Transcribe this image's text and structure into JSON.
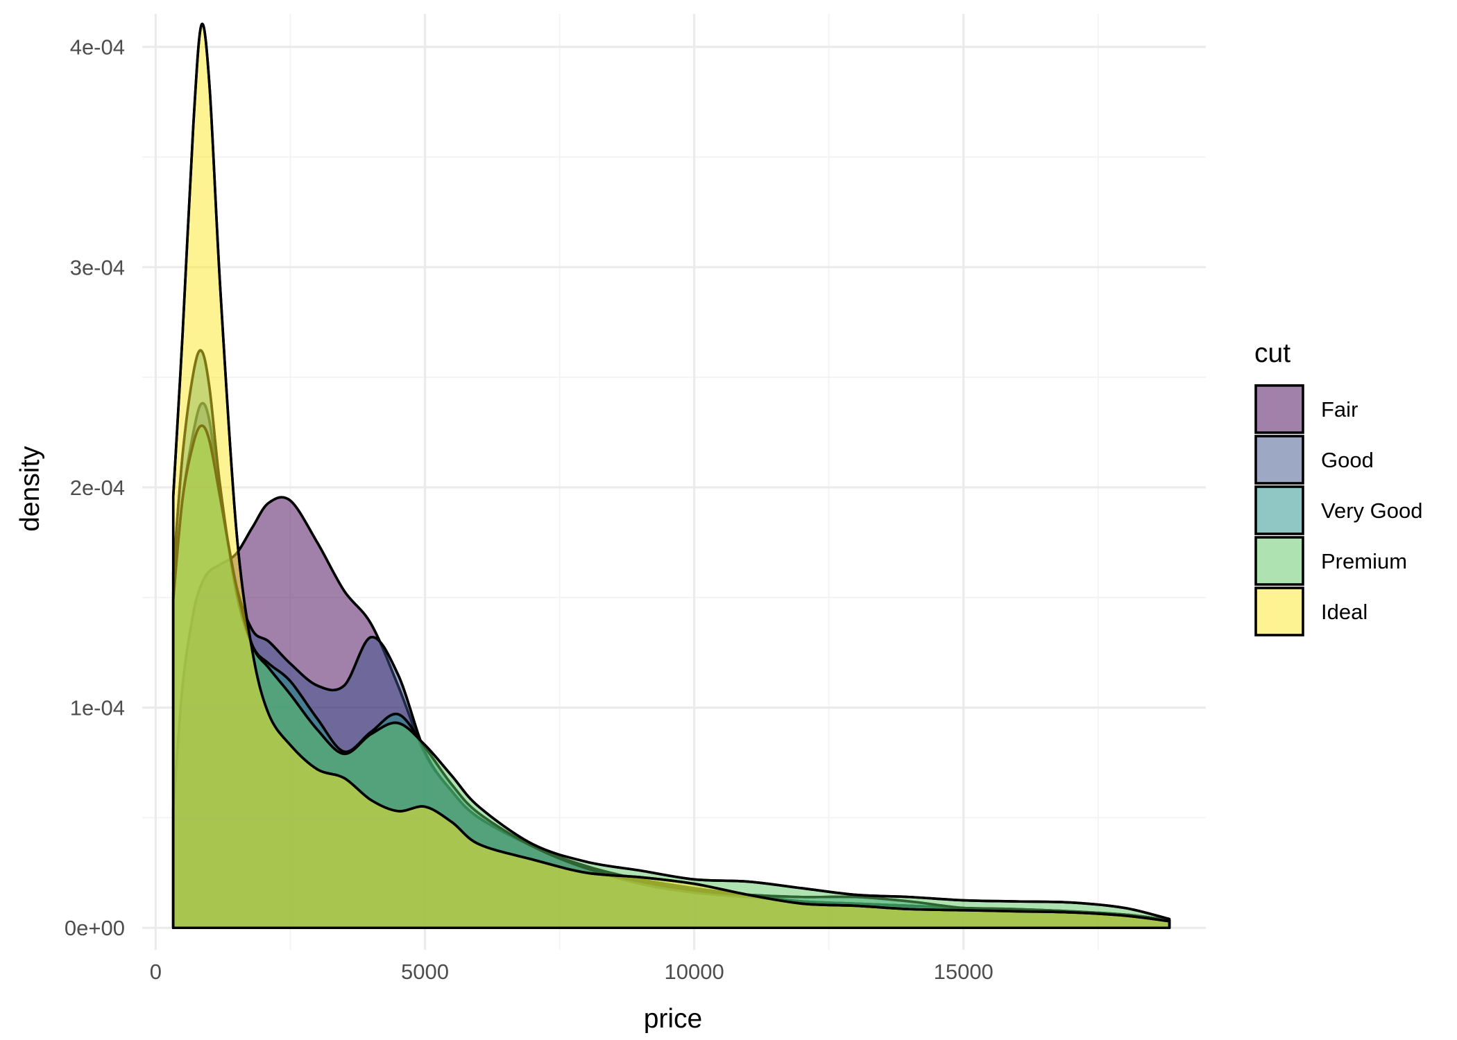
{
  "chart_data": {
    "type": "area",
    "subtype": "density",
    "title": "",
    "xlabel": "price",
    "ylabel": "density",
    "xlim": [
      -250,
      19500
    ],
    "ylim": [
      -1e-05,
      0.000415
    ],
    "x_ticks": [
      0,
      5000,
      10000,
      15000
    ],
    "x_tick_labels": [
      "0",
      "5000",
      "10000",
      "15000"
    ],
    "x_minor": [
      2500,
      7500,
      12500,
      17500
    ],
    "y_ticks": [
      0,
      0.0001,
      0.0002,
      0.0003,
      0.0004
    ],
    "y_tick_labels": [
      "0e+00",
      "1e-04",
      "2e-04",
      "3e-04",
      "4e-04"
    ],
    "y_minor": [
      5e-05,
      0.00015,
      0.00025,
      0.00035
    ],
    "grid": true,
    "fill_alpha": 0.5,
    "legend": {
      "title": "cut",
      "position": "right"
    },
    "x": [
      326,
      500,
      700,
      850,
      1000,
      1200,
      1500,
      1800,
      2100,
      2500,
      3000,
      3500,
      4000,
      4500,
      5000,
      5500,
      6000,
      7000,
      8000,
      9000,
      10000,
      11000,
      12000,
      13000,
      14000,
      15000,
      16000,
      17000,
      18000,
      18823
    ],
    "series": [
      {
        "name": "Fair",
        "color": "#440154",
        "values": [
          5.4e-05,
          0.00011,
          0.000143,
          0.000156,
          0.000162,
          0.000165,
          0.00017,
          0.000182,
          0.000193,
          0.000194,
          0.000175,
          0.000153,
          0.000138,
          0.00011,
          7.9e-05,
          6.2e-05,
          5e-05,
          3.7e-05,
          2.8e-05,
          2.2e-05,
          1.8e-05,
          1.5e-05,
          1.2e-05,
          1.1e-05,
          1e-05,
          9e-06,
          8.5e-06,
          7.5e-06,
          6e-06,
          3.5e-06
        ]
      },
      {
        "name": "Good",
        "color": "#3B528B",
        "values": [
          0.000152,
          0.000195,
          0.000225,
          0.000238,
          0.00023,
          0.000195,
          0.000155,
          0.000135,
          0.00013,
          0.00012,
          0.00011,
          0.00011,
          0.000132,
          0.000115,
          8e-05,
          6.2e-05,
          5e-05,
          3.7e-05,
          2.7e-05,
          2e-05,
          1.6e-05,
          1.4e-05,
          1.2e-05,
          1.1e-05,
          1e-05,
          9e-06,
          8e-06,
          7e-06,
          6e-06,
          3.5e-06
        ]
      },
      {
        "name": "Very Good",
        "color": "#21908C",
        "values": [
          0.000161,
          0.000215,
          0.000252,
          0.000262,
          0.000245,
          0.0002,
          0.000152,
          0.000128,
          0.00012,
          0.000112,
          9.5e-05,
          8e-05,
          8.9e-05,
          9.7e-05,
          8.2e-05,
          6.5e-05,
          5.2e-05,
          3.7e-05,
          2.7e-05,
          2.1e-05,
          1.7e-05,
          1.5e-05,
          1.4e-05,
          1.4e-05,
          1.2e-05,
          9e-06,
          8e-06,
          7e-06,
          6e-06,
          3.5e-06
        ]
      },
      {
        "name": "Premium",
        "color": "#5DC863",
        "values": [
          0.000149,
          0.000195,
          0.00022,
          0.000228,
          0.000221,
          0.000195,
          0.000155,
          0.000128,
          0.000118,
          0.000106,
          9e-05,
          7.9e-05,
          8.8e-05,
          9.3e-05,
          8.3e-05,
          6.9e-05,
          5.5e-05,
          3.8e-05,
          3e-05,
          2.6e-05,
          2.2e-05,
          2.1e-05,
          1.8e-05,
          1.5e-05,
          1.4e-05,
          1.25e-05,
          1.2e-05,
          1.15e-05,
          9e-06,
          4e-06
        ]
      },
      {
        "name": "Ideal",
        "color": "#FDE725",
        "values": [
          0.000196,
          0.00027,
          0.000365,
          0.00041,
          0.000382,
          0.00029,
          0.00018,
          0.000125,
          9.7e-05,
          8.3e-05,
          7.2e-05,
          6.8e-05,
          5.8e-05,
          5.3e-05,
          5.5e-05,
          4.8e-05,
          3.8e-05,
          3.1e-05,
          2.5e-05,
          2.3e-05,
          2e-05,
          1.5e-05,
          1.1e-05,
          1e-05,
          8.5e-06,
          8e-06,
          7.5e-06,
          7e-06,
          5.5e-06,
          3e-06
        ]
      }
    ]
  }
}
